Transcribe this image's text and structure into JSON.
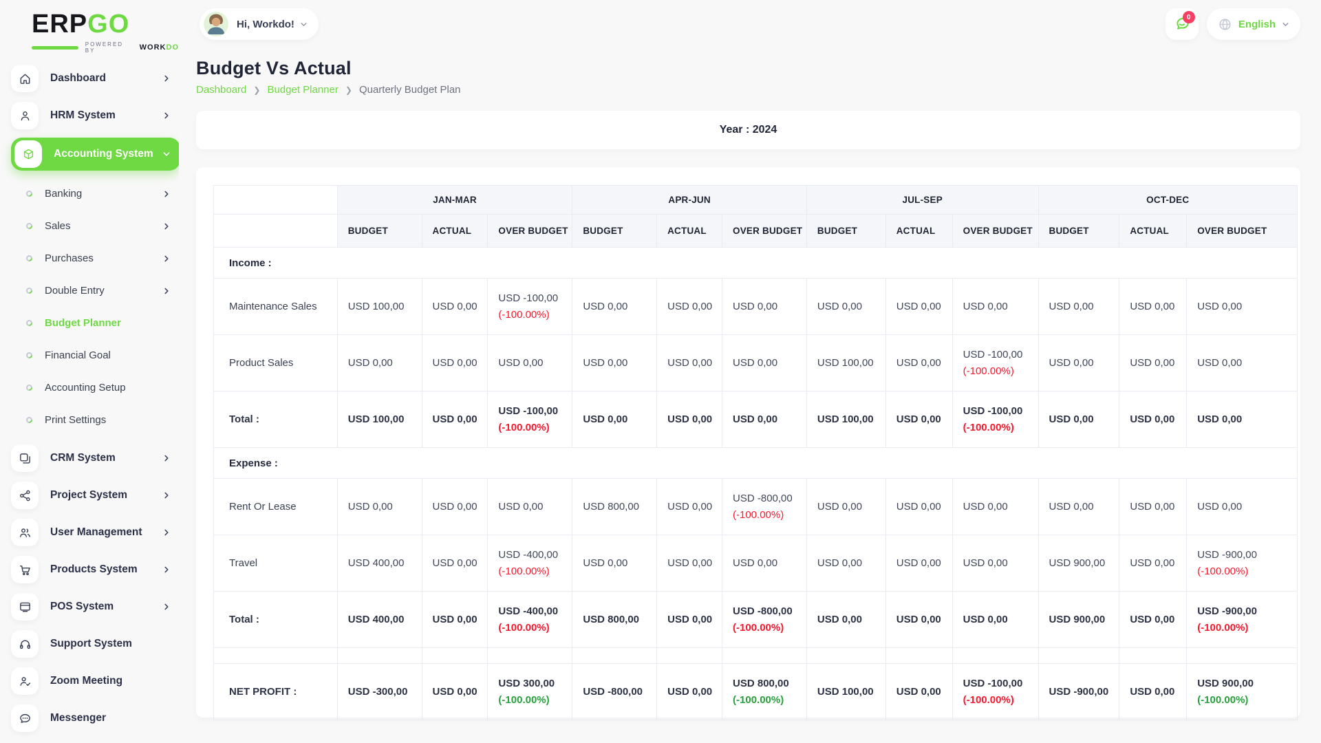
{
  "brand": {
    "name_dark": "ERP",
    "name_green": "GO",
    "powered": "Powered By",
    "workdo_dark": "WORK",
    "workdo_green": "DO"
  },
  "header": {
    "greeting": "Hi, Workdo!",
    "notification_count": "0",
    "language": "English"
  },
  "page": {
    "title": "Budget Vs Actual",
    "breadcrumb": [
      {
        "label": "Dashboard",
        "link": true
      },
      {
        "label": "Budget Planner",
        "link": true
      },
      {
        "label": "Quarterly Budget Plan",
        "link": false
      }
    ],
    "year_label": "Year : 2024"
  },
  "sidebar": {
    "items": [
      {
        "label": "Dashboard",
        "icon": "home-icon",
        "type": "main",
        "chevron": "right"
      },
      {
        "label": "HRM System",
        "icon": "user-icon",
        "type": "main",
        "chevron": "right"
      },
      {
        "label": "Accounting System",
        "icon": "cube-icon",
        "type": "main",
        "chevron": "down",
        "active": true
      },
      {
        "label": "Banking",
        "type": "sub",
        "chevron": "right"
      },
      {
        "label": "Sales",
        "type": "sub",
        "chevron": "right"
      },
      {
        "label": "Purchases",
        "type": "sub",
        "chevron": "right"
      },
      {
        "label": "Double Entry",
        "type": "sub",
        "chevron": "right"
      },
      {
        "label": "Budget Planner",
        "type": "sub",
        "active": true
      },
      {
        "label": "Financial Goal",
        "type": "sub"
      },
      {
        "label": "Accounting Setup",
        "type": "sub"
      },
      {
        "label": "Print Settings",
        "type": "sub"
      },
      {
        "label": "CRM System",
        "icon": "windows-icon",
        "type": "main",
        "chevron": "right"
      },
      {
        "label": "Project System",
        "icon": "share-nodes-icon",
        "type": "main",
        "chevron": "right"
      },
      {
        "label": "User Management",
        "icon": "users-icon",
        "type": "main",
        "chevron": "right"
      },
      {
        "label": "Products System",
        "icon": "cart-icon",
        "type": "main",
        "chevron": "right"
      },
      {
        "label": "POS System",
        "icon": "pos-window-icon",
        "type": "main",
        "chevron": "right"
      },
      {
        "label": "Support System",
        "icon": "headset-icon",
        "type": "main"
      },
      {
        "label": "Zoom Meeting",
        "icon": "user-check-icon",
        "type": "main"
      },
      {
        "label": "Messenger",
        "icon": "chat-icon",
        "type": "main"
      }
    ]
  },
  "table": {
    "quarters": [
      "JAN-MAR",
      "APR-JUN",
      "JUL-SEP",
      "OCT-DEC"
    ],
    "subheaders": [
      "BUDGET",
      "ACTUAL",
      "OVER BUDGET"
    ],
    "rows": [
      {
        "type": "section",
        "label": "Income :"
      },
      {
        "type": "data",
        "label": "Maintenance Sales",
        "cells": [
          {
            "t": "USD 100,00"
          },
          {
            "t": "USD 0,00"
          },
          {
            "t": "USD -100,00",
            "p": "(-100.00%)",
            "pc": "neg"
          },
          {
            "t": "USD 0,00"
          },
          {
            "t": "USD 0,00"
          },
          {
            "t": "USD 0,00"
          },
          {
            "t": "USD 0,00"
          },
          {
            "t": "USD 0,00"
          },
          {
            "t": "USD 0,00"
          },
          {
            "t": "USD 0,00"
          },
          {
            "t": "USD 0,00"
          },
          {
            "t": "USD 0,00"
          }
        ]
      },
      {
        "type": "data",
        "label": "Product Sales",
        "cells": [
          {
            "t": "USD 0,00"
          },
          {
            "t": "USD 0,00"
          },
          {
            "t": "USD 0,00"
          },
          {
            "t": "USD 0,00"
          },
          {
            "t": "USD 0,00"
          },
          {
            "t": "USD 0,00"
          },
          {
            "t": "USD 100,00"
          },
          {
            "t": "USD 0,00"
          },
          {
            "t": "USD -100,00",
            "p": "(-100.00%)",
            "pc": "neg"
          },
          {
            "t": "USD 0,00"
          },
          {
            "t": "USD 0,00"
          },
          {
            "t": "USD 0,00"
          }
        ]
      },
      {
        "type": "total",
        "label": "Total :",
        "cells": [
          {
            "t": "USD 100,00"
          },
          {
            "t": "USD 0,00"
          },
          {
            "t": "USD -100,00",
            "p": "(-100.00%)",
            "pc": "neg"
          },
          {
            "t": "USD 0,00"
          },
          {
            "t": "USD 0,00"
          },
          {
            "t": "USD 0,00"
          },
          {
            "t": "USD 100,00"
          },
          {
            "t": "USD 0,00"
          },
          {
            "t": "USD -100,00",
            "p": "(-100.00%)",
            "pc": "neg"
          },
          {
            "t": "USD 0,00"
          },
          {
            "t": "USD 0,00"
          },
          {
            "t": "USD 0,00"
          }
        ]
      },
      {
        "type": "section",
        "label": "Expense :"
      },
      {
        "type": "data",
        "label": "Rent Or Lease",
        "cells": [
          {
            "t": "USD 0,00"
          },
          {
            "t": "USD 0,00"
          },
          {
            "t": "USD 0,00"
          },
          {
            "t": "USD 800,00"
          },
          {
            "t": "USD 0,00"
          },
          {
            "t": "USD -800,00",
            "p": "(-100.00%)",
            "pc": "neg"
          },
          {
            "t": "USD 0,00"
          },
          {
            "t": "USD 0,00"
          },
          {
            "t": "USD 0,00"
          },
          {
            "t": "USD 0,00"
          },
          {
            "t": "USD 0,00"
          },
          {
            "t": "USD 0,00"
          }
        ]
      },
      {
        "type": "data",
        "label": "Travel",
        "cells": [
          {
            "t": "USD 400,00"
          },
          {
            "t": "USD 0,00"
          },
          {
            "t": "USD -400,00",
            "p": "(-100.00%)",
            "pc": "neg"
          },
          {
            "t": "USD 0,00"
          },
          {
            "t": "USD 0,00"
          },
          {
            "t": "USD 0,00"
          },
          {
            "t": "USD 0,00"
          },
          {
            "t": "USD 0,00"
          },
          {
            "t": "USD 0,00"
          },
          {
            "t": "USD 900,00"
          },
          {
            "t": "USD 0,00"
          },
          {
            "t": "USD -900,00",
            "p": "(-100.00%)",
            "pc": "neg"
          }
        ]
      },
      {
        "type": "total",
        "label": "Total :",
        "cells": [
          {
            "t": "USD 400,00"
          },
          {
            "t": "USD 0,00"
          },
          {
            "t": "USD -400,00",
            "p": "(-100.00%)",
            "pc": "neg"
          },
          {
            "t": "USD 800,00"
          },
          {
            "t": "USD 0,00"
          },
          {
            "t": "USD -800,00",
            "p": "(-100.00%)",
            "pc": "neg"
          },
          {
            "t": "USD 0,00"
          },
          {
            "t": "USD 0,00"
          },
          {
            "t": "USD 0,00"
          },
          {
            "t": "USD 900,00"
          },
          {
            "t": "USD 0,00"
          },
          {
            "t": "USD -900,00",
            "p": "(-100.00%)",
            "pc": "neg"
          }
        ]
      },
      {
        "type": "spacer"
      },
      {
        "type": "net",
        "label": "NET PROFIT :",
        "cells": [
          {
            "t": "USD -300,00"
          },
          {
            "t": "USD 0,00"
          },
          {
            "t": "USD 300,00",
            "p": "(-100.00%)",
            "pc": "pos"
          },
          {
            "t": "USD -800,00"
          },
          {
            "t": "USD 0,00"
          },
          {
            "t": "USD 800,00",
            "p": "(-100.00%)",
            "pc": "pos"
          },
          {
            "t": "USD 100,00"
          },
          {
            "t": "USD 0,00"
          },
          {
            "t": "USD -100,00",
            "p": "(-100.00%)",
            "pc": "neg"
          },
          {
            "t": "USD -900,00"
          },
          {
            "t": "USD 0,00"
          },
          {
            "t": "USD 900,00",
            "p": "(-100.00%)",
            "pc": "pos"
          }
        ]
      }
    ]
  },
  "colors": {
    "accent": "#6fd943",
    "negative": "#f7192d",
    "positive": "#28a03c",
    "badge": "#f73e63"
  }
}
